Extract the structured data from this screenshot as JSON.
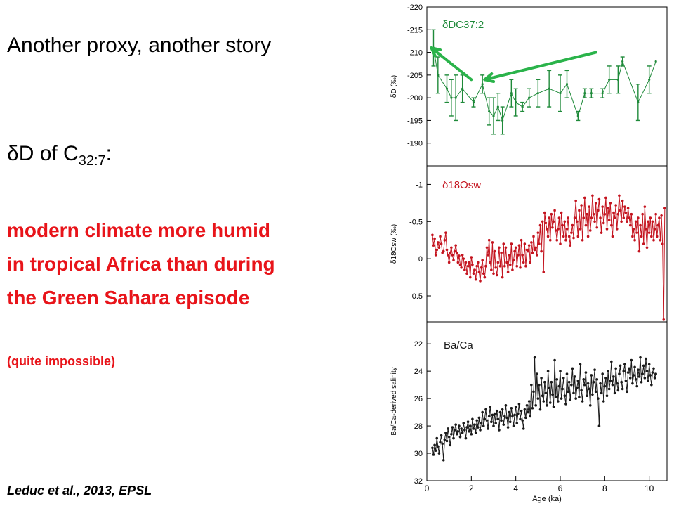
{
  "slide": {
    "title": "Another proxy, another story",
    "heading_prefix": "δD of C",
    "heading_sub": "32:7",
    "heading_suffix": ":",
    "claim_lines": [
      "modern climate more humid",
      "in tropical Africa than during",
      "the Green Sahara episode"
    ],
    "note": "(quite impossible)",
    "citation": "Leduc et al., 2013, EPSL"
  },
  "colors": {
    "accent_red": "#e8141a",
    "green": "#1f8a3a",
    "red_series": "#c4141f",
    "black_series": "#1a1a1a"
  },
  "chart_data": {
    "type": "line",
    "x_axis": {
      "label": "Age (ka)",
      "range": [
        0,
        10.8
      ],
      "ticks": [
        0,
        2,
        4,
        6,
        8,
        10
      ]
    },
    "panels": [
      {
        "id": "dD",
        "legend": "δDC37:2",
        "ylabel": "δD (‰)",
        "y_range": [
          -220,
          -185
        ],
        "y_inverted": true,
        "y_ticks": [
          -220,
          -215,
          -210,
          -205,
          -200,
          -195,
          -190
        ],
        "color": "#1f8a3a",
        "error_bars": true,
        "points": [
          {
            "x": 0.3,
            "y": -211,
            "e": 4
          },
          {
            "x": 0.5,
            "y": -205,
            "e": 4
          },
          {
            "x": 0.9,
            "y": -202,
            "e": 3
          },
          {
            "x": 1.1,
            "y": -200,
            "e": 4
          },
          {
            "x": 1.3,
            "y": -200,
            "e": 5
          },
          {
            "x": 1.6,
            "y": -202,
            "e": 3
          },
          {
            "x": 2.1,
            "y": -199,
            "e": 1
          },
          {
            "x": 2.5,
            "y": -203,
            "e": 2
          },
          {
            "x": 2.8,
            "y": -197,
            "e": 3
          },
          {
            "x": 3.0,
            "y": -196,
            "e": 4
          },
          {
            "x": 3.2,
            "y": -198,
            "e": 3
          },
          {
            "x": 3.4,
            "y": -195,
            "e": 3
          },
          {
            "x": 3.8,
            "y": -201,
            "e": 3
          },
          {
            "x": 4.0,
            "y": -199,
            "e": 3
          },
          {
            "x": 4.3,
            "y": -198,
            "e": 1
          },
          {
            "x": 4.6,
            "y": -200,
            "e": 2
          },
          {
            "x": 5.0,
            "y": -201,
            "e": 3
          },
          {
            "x": 5.5,
            "y": -202,
            "e": 4
          },
          {
            "x": 6.0,
            "y": -201,
            "e": 4
          },
          {
            "x": 6.3,
            "y": -203,
            "e": 3
          },
          {
            "x": 6.8,
            "y": -196,
            "e": 1
          },
          {
            "x": 7.1,
            "y": -201,
            "e": 1
          },
          {
            "x": 7.4,
            "y": -201,
            "e": 1
          },
          {
            "x": 7.9,
            "y": -201,
            "e": 1
          },
          {
            "x": 8.2,
            "y": -204,
            "e": 3
          },
          {
            "x": 8.6,
            "y": -204,
            "e": 3
          },
          {
            "x": 8.8,
            "y": -208,
            "e": 1
          },
          {
            "x": 9.5,
            "y": -199,
            "e": 4
          },
          {
            "x": 10.0,
            "y": -204,
            "e": 3
          },
          {
            "x": 10.3,
            "y": -208,
            "e": 0
          }
        ]
      },
      {
        "id": "d18Osw",
        "legend": "δ18Osw",
        "ylabel": "δ18Osw (‰)",
        "y_range": [
          -1.25,
          0.85
        ],
        "y_inverted": true,
        "y_ticks": [
          -1,
          -0.5,
          0,
          0.5
        ],
        "color": "#c4141f",
        "x_start": 0.25,
        "x_step": 0.05,
        "values": [
          -0.32,
          -0.18,
          -0.27,
          -0.05,
          -0.12,
          -0.22,
          -0.15,
          -0.3,
          -0.2,
          -0.08,
          -0.1,
          -0.25,
          -0.35,
          -0.12,
          -0.05,
          0.05,
          -0.08,
          -0.15,
          -0.05,
          0.02,
          -0.1,
          -0.18,
          -0.08,
          0.05,
          -0.04,
          0.08,
          0.12,
          -0.05,
          0.0,
          0.15,
          0.05,
          0.2,
          0.1,
          0.05,
          0.25,
          -0.02,
          0.08,
          0.2,
          0.15,
          0.28,
          0.1,
          0.05,
          0.18,
          0.3,
          0.12,
          0.02,
          0.2,
          0.25,
          0.1,
          -0.15,
          -0.05,
          -0.25,
          0.05,
          0.15,
          -0.22,
          0.2,
          -0.1,
          0.12,
          0.22,
          0.05,
          -0.15,
          0.1,
          -0.08,
          0.25,
          -0.2,
          0.1,
          -0.15,
          0.05,
          0.18,
          -0.05,
          0.08,
          -0.2,
          0.15,
          0.02,
          -0.1,
          -0.15,
          0.1,
          -0.05,
          -0.18,
          0.12,
          -0.25,
          -0.05,
          0.05,
          -0.2,
          0.1,
          -0.12,
          -0.1,
          -0.18,
          0.05,
          -0.22,
          -0.08,
          -0.3,
          -0.12,
          -0.15,
          -0.05,
          -0.35,
          -0.2,
          -0.45,
          -0.1,
          -0.5,
          0.18,
          -0.62,
          -0.48,
          -0.4,
          -0.3,
          -0.55,
          -0.25,
          -0.6,
          -0.42,
          -0.5,
          -0.65,
          -0.38,
          -0.25,
          -0.4,
          -0.55,
          -0.2,
          -0.62,
          -0.45,
          -0.3,
          -0.5,
          -0.25,
          -0.4,
          -0.55,
          -0.3,
          -0.18,
          -0.35,
          -0.45,
          -0.28,
          -0.55,
          -0.78,
          -0.5,
          -0.3,
          -0.65,
          -0.4,
          -0.72,
          -0.25,
          -0.55,
          -0.82,
          -0.45,
          -0.6,
          -0.3,
          -0.7,
          -0.38,
          -0.55,
          -0.85,
          -0.6,
          -0.5,
          -0.75,
          -0.42,
          -0.65,
          -0.8,
          -0.55,
          -0.35,
          -0.7,
          -0.48,
          -0.6,
          -0.82,
          -0.4,
          -0.68,
          -0.52,
          -0.75,
          -0.45,
          -0.3,
          -0.62,
          -0.55,
          -0.72,
          -0.4,
          -0.6,
          -0.85,
          -0.65,
          -0.5,
          -0.78,
          -0.55,
          -0.7,
          -0.62,
          -0.5,
          -0.68,
          -0.55,
          -0.45,
          -0.6,
          -0.3,
          -0.4,
          -0.25,
          -0.5,
          -0.35,
          -0.55,
          -0.1,
          -0.45,
          -0.3,
          -0.6,
          -0.2,
          -0.7,
          -0.4,
          -0.15,
          -0.5,
          -0.35,
          -0.55,
          -0.3,
          -0.5,
          -0.25,
          -0.4,
          -0.6,
          -0.3,
          -0.45,
          -0.55,
          -0.25,
          -0.58,
          -0.2,
          0.82,
          -0.68
        ]
      },
      {
        "id": "BaCa",
        "legend": "Ba/Ca",
        "ylabel": "Ba/Ca-derived salinity",
        "y_range": [
          20.4,
          32
        ],
        "y_inverted": true,
        "y_ticks": [
          22,
          24,
          26,
          28,
          30,
          32
        ],
        "color": "#1a1a1a",
        "x_start": 0.25,
        "x_step": 0.05,
        "values": [
          29.6,
          30.1,
          29.4,
          29.8,
          28.9,
          29.5,
          30.0,
          29.2,
          28.7,
          29.3,
          30.5,
          29.0,
          28.5,
          29.1,
          28.2,
          28.8,
          29.4,
          28.6,
          28.1,
          28.9,
          28.3,
          27.9,
          28.6,
          28.4,
          28.0,
          28.8,
          28.2,
          28.5,
          27.8,
          28.3,
          28.9,
          28.1,
          27.7,
          28.4,
          28.0,
          28.6,
          27.5,
          28.2,
          27.9,
          28.5,
          27.6,
          28.1,
          27.4,
          28.3,
          27.8,
          27.0,
          28.0,
          27.5,
          26.8,
          27.6,
          28.2,
          27.3,
          26.6,
          27.7,
          27.2,
          28.0,
          27.1,
          27.8,
          26.9,
          27.5,
          28.3,
          27.0,
          27.6,
          26.8,
          27.9,
          27.3,
          26.5,
          27.4,
          28.1,
          27.0,
          27.7,
          26.7,
          27.3,
          28.0,
          27.2,
          26.6,
          27.8,
          27.1,
          26.4,
          27.5,
          26.9,
          27.6,
          28.2,
          26.8,
          27.4,
          26.5,
          27.0,
          26.2,
          27.3,
          25.0,
          26.7,
          25.5,
          23.0,
          26.5,
          24.2,
          26.0,
          25.0,
          26.8,
          24.5,
          25.8,
          26.2,
          24.8,
          25.6,
          26.5,
          24.0,
          25.2,
          26.3,
          24.8,
          25.7,
          26.6,
          23.2,
          25.9,
          24.6,
          26.2,
          25.1,
          24.0,
          26.0,
          25.3,
          24.5,
          25.8,
          26.4,
          24.2,
          25.5,
          24.8,
          26.1,
          25.0,
          23.8,
          25.6,
          24.4,
          26.0,
          25.2,
          24.7,
          25.9,
          23.5,
          25.4,
          26.2,
          24.6,
          25.0,
          24.1,
          25.8,
          24.9,
          25.3,
          26.5,
          24.3,
          25.7,
          24.8,
          23.9,
          25.5,
          24.6,
          26.0,
          28.0,
          24.9,
          25.6,
          24.2,
          26.2,
          25.1,
          24.5,
          25.8,
          24.0,
          25.3,
          24.7,
          23.3,
          25.0,
          24.4,
          25.6,
          23.8,
          24.9,
          25.4,
          24.2,
          23.6,
          24.8,
          25.3,
          24.0,
          23.5,
          24.7,
          25.5,
          24.1,
          23.8,
          24.5,
          23.2,
          24.9,
          24.3,
          23.7,
          24.6,
          25.1,
          23.9,
          24.4,
          23.0,
          24.8,
          24.2,
          23.6,
          24.5,
          23.1,
          24.0,
          24.7,
          23.5,
          24.3,
          25.0,
          24.1,
          23.8,
          24.5,
          24.2
        ]
      }
    ]
  }
}
